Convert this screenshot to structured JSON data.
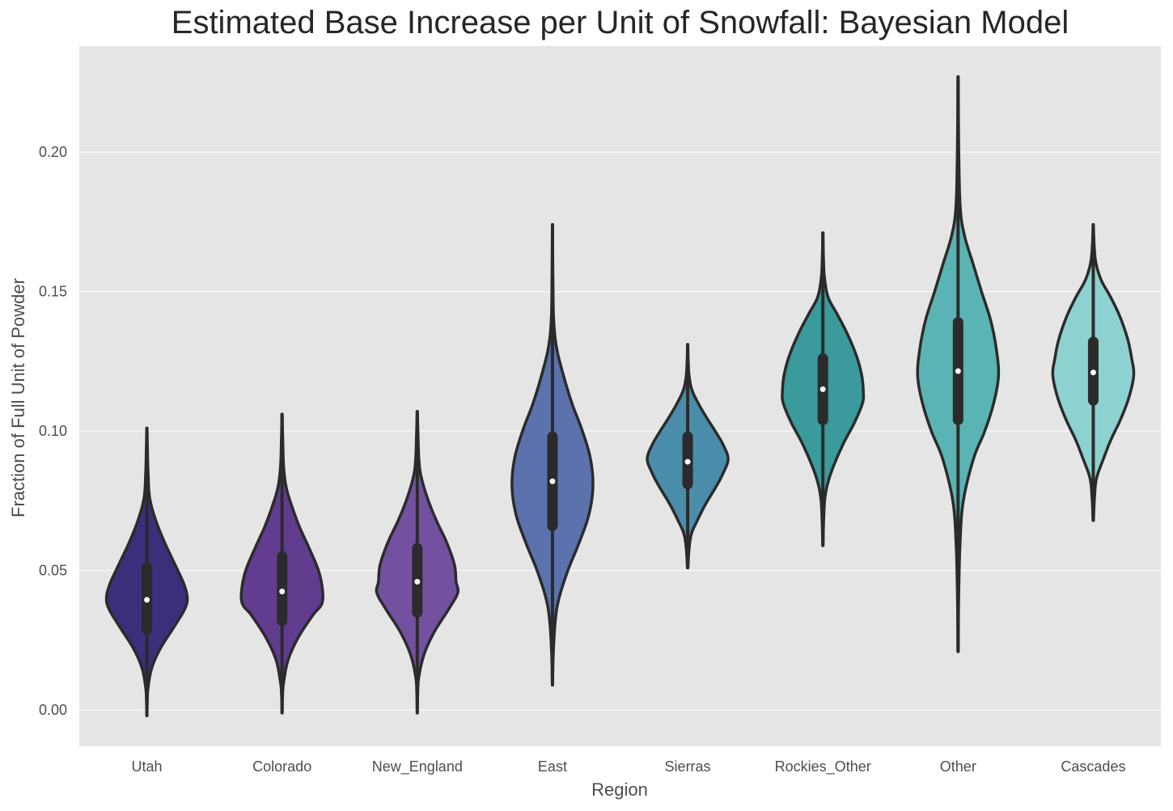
{
  "chart_data": {
    "type": "violin",
    "title": "Estimated Base Increase per Unit of Snowfall: Bayesian Model",
    "xlabel": "Region",
    "ylabel": "Fraction of Full Unit of Powder",
    "ylim": [
      -0.013,
      0.238
    ],
    "yticks": [
      0.0,
      0.05,
      0.1,
      0.15,
      0.2
    ],
    "ytick_labels": [
      "0.00",
      "0.05",
      "0.10",
      "0.15",
      "0.20"
    ],
    "grid": true,
    "background": "#e5e5e5",
    "series": [
      {
        "name": "Utah",
        "color": "#3d2e7c",
        "median": 0.0395,
        "q1": 0.029,
        "q3": 0.051,
        "min": -0.002,
        "max": 0.101,
        "profile": [
          [
            -0.002,
            0.002
          ],
          [
            0.003,
            0.01
          ],
          [
            0.008,
            0.03
          ],
          [
            0.015,
            0.12
          ],
          [
            0.022,
            0.33
          ],
          [
            0.03,
            0.68
          ],
          [
            0.036,
            0.93
          ],
          [
            0.04,
            1.0
          ],
          [
            0.045,
            0.92
          ],
          [
            0.052,
            0.7
          ],
          [
            0.06,
            0.44
          ],
          [
            0.068,
            0.22
          ],
          [
            0.076,
            0.07
          ],
          [
            0.085,
            0.03
          ],
          [
            0.093,
            0.015
          ],
          [
            0.101,
            0.004
          ]
        ]
      },
      {
        "name": "Colorado",
        "color": "#613c8f",
        "median": 0.0425,
        "q1": 0.032,
        "q3": 0.055,
        "min": -0.001,
        "max": 0.106,
        "profile": [
          [
            -0.001,
            0.002
          ],
          [
            0.005,
            0.012
          ],
          [
            0.01,
            0.04
          ],
          [
            0.018,
            0.15
          ],
          [
            0.026,
            0.4
          ],
          [
            0.034,
            0.76
          ],
          [
            0.038,
            0.98
          ],
          [
            0.043,
            1.0
          ],
          [
            0.05,
            0.9
          ],
          [
            0.058,
            0.67
          ],
          [
            0.066,
            0.42
          ],
          [
            0.074,
            0.22
          ],
          [
            0.08,
            0.1
          ],
          [
            0.087,
            0.04
          ],
          [
            0.095,
            0.02
          ],
          [
            0.106,
            0.004
          ]
        ]
      },
      {
        "name": "New_England",
        "color": "#7351a0",
        "median": 0.046,
        "q1": 0.035,
        "q3": 0.058,
        "min": -0.001,
        "max": 0.107,
        "profile": [
          [
            -0.001,
            0.002
          ],
          [
            0.006,
            0.012
          ],
          [
            0.012,
            0.04
          ],
          [
            0.02,
            0.17
          ],
          [
            0.028,
            0.42
          ],
          [
            0.036,
            0.77
          ],
          [
            0.042,
            1.0
          ],
          [
            0.046,
            0.96
          ],
          [
            0.052,
            0.92
          ],
          [
            0.06,
            0.73
          ],
          [
            0.068,
            0.47
          ],
          [
            0.076,
            0.25
          ],
          [
            0.084,
            0.09
          ],
          [
            0.09,
            0.04
          ],
          [
            0.098,
            0.02
          ],
          [
            0.107,
            0.004
          ]
        ]
      },
      {
        "name": "East",
        "color": "#5b72ad",
        "median": 0.082,
        "q1": 0.066,
        "q3": 0.098,
        "min": 0.009,
        "max": 0.174,
        "profile": [
          [
            0.009,
            0.005
          ],
          [
            0.02,
            0.02
          ],
          [
            0.032,
            0.07
          ],
          [
            0.04,
            0.16
          ],
          [
            0.05,
            0.38
          ],
          [
            0.06,
            0.66
          ],
          [
            0.07,
            0.9
          ],
          [
            0.08,
            1.0
          ],
          [
            0.09,
            0.94
          ],
          [
            0.1,
            0.74
          ],
          [
            0.11,
            0.48
          ],
          [
            0.12,
            0.27
          ],
          [
            0.13,
            0.1
          ],
          [
            0.14,
            0.03
          ],
          [
            0.155,
            0.012
          ],
          [
            0.174,
            0.003
          ]
        ]
      },
      {
        "name": "Sierras",
        "color": "#4a8dab",
        "median": 0.089,
        "q1": 0.081,
        "q3": 0.098,
        "min": 0.051,
        "max": 0.131,
        "profile": [
          [
            0.051,
            0.008
          ],
          [
            0.057,
            0.03
          ],
          [
            0.063,
            0.09
          ],
          [
            0.068,
            0.24
          ],
          [
            0.074,
            0.45
          ],
          [
            0.08,
            0.7
          ],
          [
            0.085,
            0.88
          ],
          [
            0.09,
            1.0
          ],
          [
            0.095,
            0.88
          ],
          [
            0.1,
            0.68
          ],
          [
            0.105,
            0.46
          ],
          [
            0.11,
            0.26
          ],
          [
            0.115,
            0.1
          ],
          [
            0.12,
            0.035
          ],
          [
            0.125,
            0.015
          ],
          [
            0.131,
            0.004
          ]
        ]
      },
      {
        "name": "Rockies_Other",
        "color": "#3a9a9c",
        "median": 0.115,
        "q1": 0.104,
        "q3": 0.126,
        "min": 0.059,
        "max": 0.171,
        "profile": [
          [
            0.059,
            0.006
          ],
          [
            0.068,
            0.02
          ],
          [
            0.077,
            0.06
          ],
          [
            0.085,
            0.2
          ],
          [
            0.095,
            0.49
          ],
          [
            0.103,
            0.78
          ],
          [
            0.11,
            0.98
          ],
          [
            0.114,
            1.0
          ],
          [
            0.12,
            0.96
          ],
          [
            0.127,
            0.83
          ],
          [
            0.135,
            0.6
          ],
          [
            0.142,
            0.35
          ],
          [
            0.148,
            0.13
          ],
          [
            0.155,
            0.04
          ],
          [
            0.162,
            0.015
          ],
          [
            0.171,
            0.003
          ]
        ]
      },
      {
        "name": "Other",
        "color": "#5ab4b3",
        "median": 0.1215,
        "q1": 0.104,
        "q3": 0.139,
        "min": 0.021,
        "max": 0.227,
        "profile": [
          [
            0.021,
            0.004
          ],
          [
            0.04,
            0.015
          ],
          [
            0.06,
            0.05
          ],
          [
            0.075,
            0.13
          ],
          [
            0.09,
            0.38
          ],
          [
            0.1,
            0.66
          ],
          [
            0.11,
            0.88
          ],
          [
            0.12,
            1.0
          ],
          [
            0.13,
            0.94
          ],
          [
            0.14,
            0.8
          ],
          [
            0.15,
            0.58
          ],
          [
            0.16,
            0.37
          ],
          [
            0.17,
            0.16
          ],
          [
            0.18,
            0.055
          ],
          [
            0.2,
            0.018
          ],
          [
            0.227,
            0.004
          ]
        ]
      },
      {
        "name": "Cascades",
        "color": "#8dd2d0",
        "median": 0.121,
        "q1": 0.111,
        "q3": 0.132,
        "min": 0.068,
        "max": 0.174,
        "profile": [
          [
            0.068,
            0.006
          ],
          [
            0.076,
            0.03
          ],
          [
            0.083,
            0.08
          ],
          [
            0.09,
            0.25
          ],
          [
            0.097,
            0.44
          ],
          [
            0.104,
            0.67
          ],
          [
            0.112,
            0.88
          ],
          [
            0.12,
            1.0
          ],
          [
            0.126,
            0.95
          ],
          [
            0.133,
            0.85
          ],
          [
            0.141,
            0.66
          ],
          [
            0.148,
            0.43
          ],
          [
            0.154,
            0.2
          ],
          [
            0.16,
            0.07
          ],
          [
            0.166,
            0.025
          ],
          [
            0.174,
            0.004
          ]
        ]
      }
    ]
  }
}
